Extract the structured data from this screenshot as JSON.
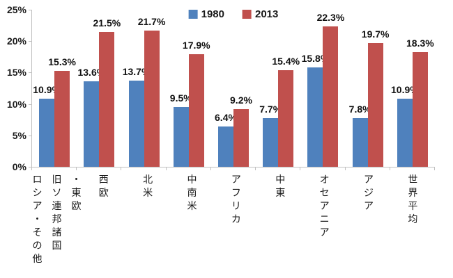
{
  "chart_data": {
    "type": "bar",
    "title": "",
    "legend": {
      "position": "top",
      "entries": [
        "1980",
        "2013"
      ]
    },
    "categories": [
      {
        "label": "ロシア・その他旧ソ連邦諸国・東欧",
        "lines": [
          "ロシア・その他",
          "旧ソ連邦諸国",
          "・東欧"
        ]
      },
      {
        "label": "西欧",
        "lines": [
          "西欧"
        ]
      },
      {
        "label": "北米",
        "lines": [
          "北米"
        ]
      },
      {
        "label": "中南米",
        "lines": [
          "中南米"
        ]
      },
      {
        "label": "アフリカ",
        "lines": [
          "アフリカ"
        ]
      },
      {
        "label": "中東",
        "lines": [
          "中東"
        ]
      },
      {
        "label": "オセアニア",
        "lines": [
          "オセアニア"
        ]
      },
      {
        "label": "アジア",
        "lines": [
          "アジア"
        ]
      },
      {
        "label": "世界平均",
        "lines": [
          "世界平均"
        ]
      }
    ],
    "series": [
      {
        "name": "1980",
        "color": "#4F81BD",
        "values": [
          10.9,
          13.6,
          13.7,
          9.5,
          6.4,
          7.7,
          15.8,
          7.8,
          10.9
        ]
      },
      {
        "name": "2013",
        "color": "#C0504D",
        "values": [
          15.3,
          21.5,
          21.7,
          17.9,
          9.2,
          15.4,
          22.3,
          19.7,
          18.3
        ]
      }
    ],
    "data_labels": {
      "visible": true,
      "suffix": "%",
      "decimals": 1
    },
    "y_axis": {
      "min": 0,
      "max": 25,
      "step": 5,
      "tick_labels": [
        "0%",
        "5%",
        "10%",
        "15%",
        "20%",
        "25%"
      ]
    },
    "grid": false,
    "colors": {
      "axis_line": "#C0C0C0",
      "text": "#1A1A1A",
      "background": "#FFFFFF"
    }
  }
}
